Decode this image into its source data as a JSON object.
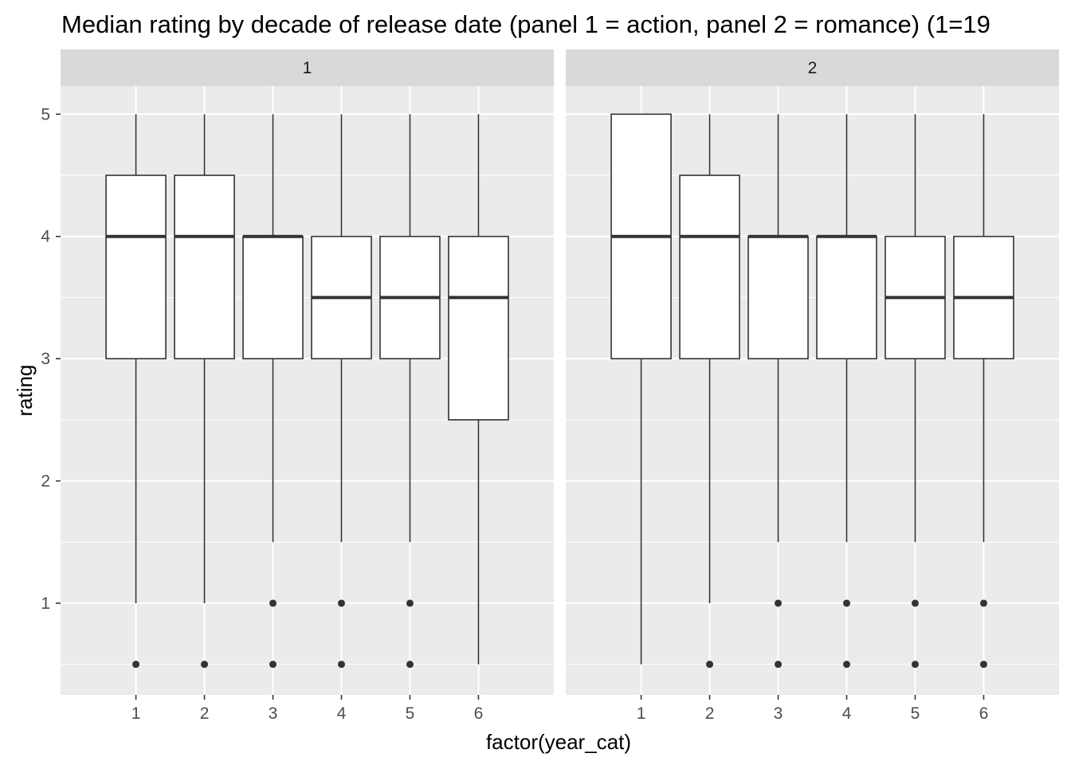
{
  "chart_data": {
    "type": "boxplot",
    "title": "Median rating by decade of release date (panel 1 = action, panel 2 = romance) (1=19",
    "xlabel": "factor(year_cat)",
    "ylabel": "rating",
    "ylim": [
      0.25,
      5.23
    ],
    "y_ticks": [
      "1",
      "2",
      "3",
      "4",
      "5"
    ],
    "grid": true,
    "categories": [
      "1",
      "2",
      "3",
      "4",
      "5",
      "6"
    ],
    "panels": [
      {
        "name": "1",
        "boxes": [
          {
            "category": "1",
            "lower_whisker": 1,
            "q1": 3,
            "median": 4,
            "q3": 4.5,
            "upper_whisker": 5,
            "outliers": [
              0.5
            ]
          },
          {
            "category": "2",
            "lower_whisker": 1,
            "q1": 3,
            "median": 4,
            "q3": 4.5,
            "upper_whisker": 5,
            "outliers": [
              0.5
            ]
          },
          {
            "category": "3",
            "lower_whisker": 1.5,
            "q1": 3,
            "median": 4,
            "q3": 4,
            "upper_whisker": 5,
            "outliers": [
              1,
              0.5
            ]
          },
          {
            "category": "4",
            "lower_whisker": 1.5,
            "q1": 3,
            "median": 3.5,
            "q3": 4,
            "upper_whisker": 5,
            "outliers": [
              1,
              0.5
            ]
          },
          {
            "category": "5",
            "lower_whisker": 1.5,
            "q1": 3,
            "median": 3.5,
            "q3": 4,
            "upper_whisker": 5,
            "outliers": [
              1,
              0.5
            ]
          },
          {
            "category": "6",
            "lower_whisker": 0.5,
            "q1": 2.5,
            "median": 3.5,
            "q3": 4,
            "upper_whisker": 5,
            "outliers": []
          }
        ]
      },
      {
        "name": "2",
        "boxes": [
          {
            "category": "1",
            "lower_whisker": 0.5,
            "q1": 3,
            "median": 4,
            "q3": 5,
            "upper_whisker": 5,
            "outliers": []
          },
          {
            "category": "2",
            "lower_whisker": 1,
            "q1": 3,
            "median": 4,
            "q3": 4.5,
            "upper_whisker": 5,
            "outliers": [
              0.5
            ]
          },
          {
            "category": "3",
            "lower_whisker": 1.5,
            "q1": 3,
            "median": 4,
            "q3": 4,
            "upper_whisker": 5,
            "outliers": [
              1,
              0.5
            ]
          },
          {
            "category": "4",
            "lower_whisker": 1.5,
            "q1": 3,
            "median": 4,
            "q3": 4,
            "upper_whisker": 5,
            "outliers": [
              1,
              0.5
            ]
          },
          {
            "category": "5",
            "lower_whisker": 1.5,
            "q1": 3,
            "median": 3.5,
            "q3": 4,
            "upper_whisker": 5,
            "outliers": [
              1,
              0.5
            ]
          },
          {
            "category": "6",
            "lower_whisker": 1.5,
            "q1": 3,
            "median": 3.5,
            "q3": 4,
            "upper_whisker": 5,
            "outliers": [
              1,
              0.5
            ]
          }
        ]
      }
    ]
  },
  "colors": {
    "panel_background": "#EBEBEB",
    "strip_background": "#D9D9D9",
    "grid": "#FFFFFF",
    "box_fill": "#FFFFFF",
    "box_line": "#333333"
  }
}
